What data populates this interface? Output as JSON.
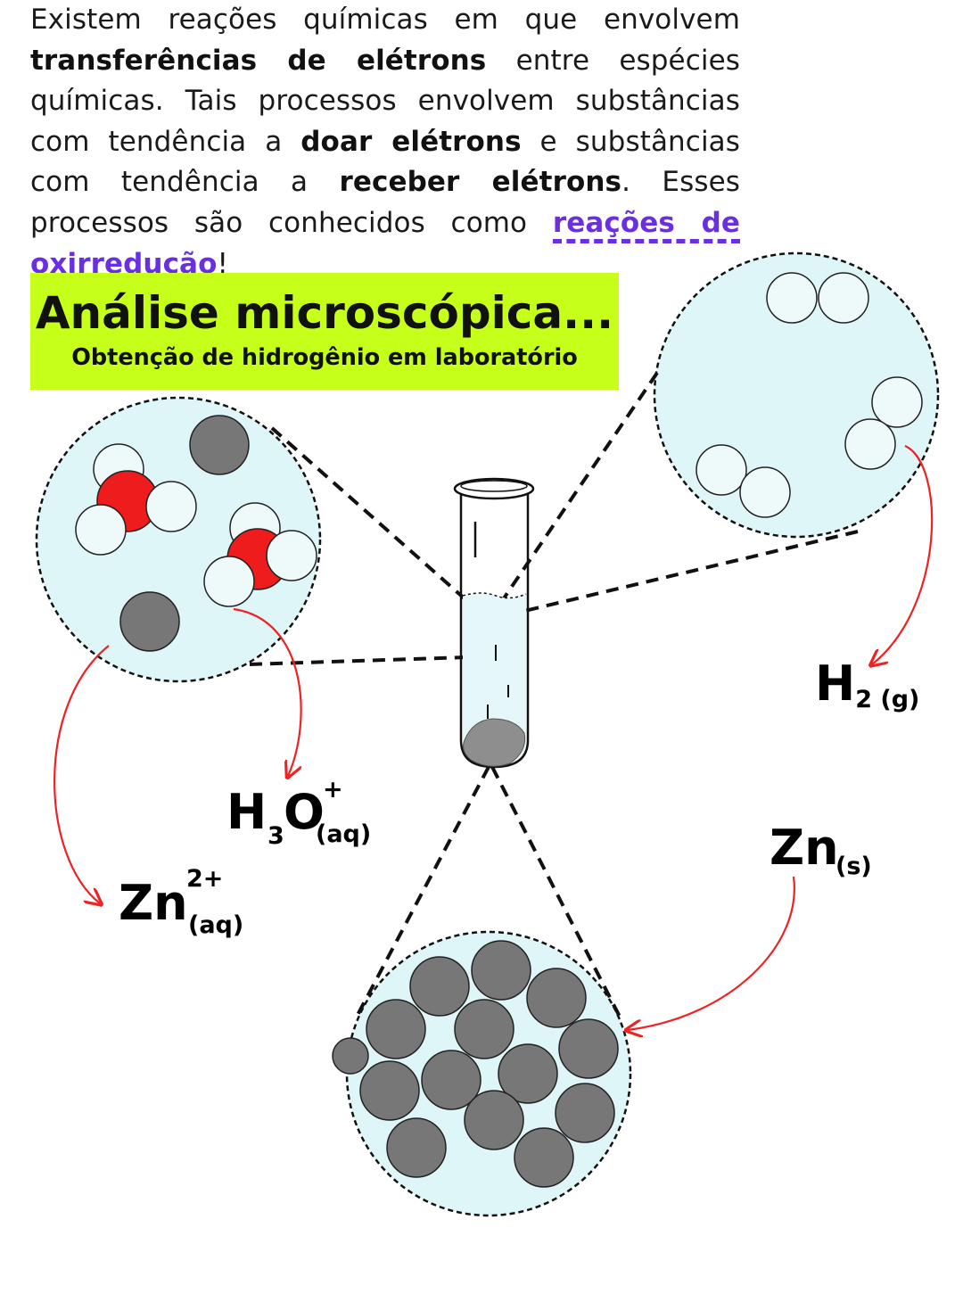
{
  "intro": {
    "p1": "Existem reações químicas em que envolvem ",
    "b1": "transferências  de elétrons",
    "p2": " entre espécies químicas. Tais processos envolvem substâncias com tendência a ",
    "b2": "doar elétrons",
    "p3": " e substâncias com tendência a ",
    "b3": "receber elétrons",
    "p4": ".  Esses processos são conhecidos como ",
    "link": "reações de oxirredução",
    "p5": "!"
  },
  "title": {
    "main": "Análise microscópica...",
    "sub": "Obtenção de hidrogênio em laboratório"
  },
  "labels": {
    "h2": {
      "symbol": "H",
      "sub": "2 (g)"
    },
    "h3o": {
      "h": "H",
      "three": "3",
      "o": "O",
      "charge": "+",
      "state": "(aq)"
    },
    "zn_ion": {
      "symbol": "Zn",
      "charge": "2+",
      "state": "(aq)"
    },
    "zn_solid": {
      "symbol": "Zn",
      "state": "(s)"
    }
  },
  "colors": {
    "zoom_fill": "#dff6f9",
    "zinc_atom": "#777777",
    "oxygen_atom": "#ee1c1c",
    "hydrogen_atom": "#eef9f9",
    "arrow": "#ee2222",
    "title_bg": "#c6ff1a",
    "link": "#6a2fe0"
  }
}
